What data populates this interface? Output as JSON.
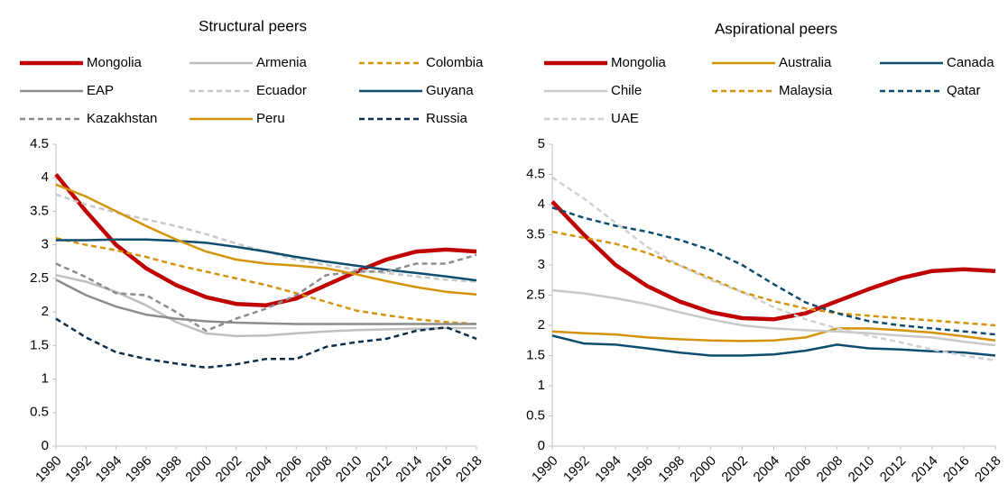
{
  "chart_data": [
    {
      "type": "line",
      "title": "Structural peers",
      "x": [
        1990,
        1992,
        1994,
        1996,
        1998,
        2000,
        2002,
        2004,
        2006,
        2008,
        2010,
        2012,
        2014,
        2016,
        2018
      ],
      "xlim": [
        1990,
        2018
      ],
      "xticks": [
        1990,
        1992,
        1994,
        1996,
        1998,
        2000,
        2002,
        2004,
        2006,
        2008,
        2010,
        2012,
        2014,
        2016,
        2018
      ],
      "ylim": [
        0,
        4.5
      ],
      "yticks": [
        0,
        0.5,
        1,
        1.5,
        2,
        2.5,
        3,
        3.5,
        4,
        4.5
      ],
      "series": [
        {
          "name": "Mongolia",
          "color": "#c00000",
          "style": "thick",
          "values": [
            4.05,
            3.5,
            3.0,
            2.65,
            2.4,
            2.22,
            2.12,
            2.1,
            2.2,
            2.4,
            2.6,
            2.78,
            2.9,
            2.93,
            2.9
          ]
        },
        {
          "name": "Armenia",
          "color": "#bfbfbf",
          "style": "solid",
          "values": [
            2.55,
            2.45,
            2.3,
            2.1,
            1.85,
            1.68,
            1.64,
            1.65,
            1.68,
            1.71,
            1.73,
            1.74,
            1.75,
            1.76,
            1.76
          ]
        },
        {
          "name": "Colombia",
          "color": "#d4940a",
          "style": "dashed",
          "values": [
            3.1,
            3.0,
            2.92,
            2.82,
            2.7,
            2.6,
            2.5,
            2.4,
            2.28,
            2.15,
            2.02,
            1.95,
            1.89,
            1.85,
            1.82
          ]
        },
        {
          "name": "EAP",
          "color": "#8c8c8c",
          "style": "solid",
          "values": [
            2.48,
            2.25,
            2.08,
            1.96,
            1.9,
            1.86,
            1.84,
            1.83,
            1.82,
            1.82,
            1.82,
            1.82,
            1.82,
            1.82,
            1.82
          ]
        },
        {
          "name": "Ecuador",
          "color": "#c8c8c8",
          "style": "dashed",
          "values": [
            3.75,
            3.6,
            3.48,
            3.38,
            3.28,
            3.16,
            3.02,
            2.9,
            2.78,
            2.7,
            2.63,
            2.58,
            2.53,
            2.48,
            2.45
          ]
        },
        {
          "name": "Guyana",
          "color": "#0e4d6e",
          "style": "solid",
          "values": [
            3.07,
            3.07,
            3.08,
            3.08,
            3.06,
            3.03,
            2.97,
            2.9,
            2.82,
            2.75,
            2.69,
            2.63,
            2.58,
            2.53,
            2.47
          ]
        },
        {
          "name": "Kazakhstan",
          "color": "#8c8c8c",
          "style": "dashed",
          "values": [
            2.72,
            2.52,
            2.28,
            2.25,
            2.0,
            1.72,
            1.9,
            2.05,
            2.25,
            2.55,
            2.6,
            2.6,
            2.72,
            2.72,
            2.85
          ]
        },
        {
          "name": "Peru",
          "color": "#d4940a",
          "style": "solid",
          "values": [
            3.9,
            3.72,
            3.5,
            3.28,
            3.08,
            2.9,
            2.78,
            2.72,
            2.69,
            2.65,
            2.56,
            2.46,
            2.37,
            2.3,
            2.26
          ]
        },
        {
          "name": "Russia",
          "color": "#0b2f4a",
          "style": "dashed",
          "values": [
            1.9,
            1.62,
            1.4,
            1.3,
            1.23,
            1.17,
            1.22,
            1.3,
            1.3,
            1.48,
            1.55,
            1.6,
            1.72,
            1.77,
            1.6
          ]
        }
      ]
    },
    {
      "type": "line",
      "title": "Aspirational peers",
      "x": [
        1990,
        1992,
        1994,
        1996,
        1998,
        2000,
        2002,
        2004,
        2006,
        2008,
        2010,
        2012,
        2014,
        2016,
        2018
      ],
      "xlim": [
        1990,
        2018
      ],
      "xticks": [
        1990,
        1992,
        1994,
        1996,
        1998,
        2000,
        2002,
        2004,
        2006,
        2008,
        2010,
        2012,
        2014,
        2016,
        2018
      ],
      "ylim": [
        0,
        5
      ],
      "yticks": [
        0,
        0.5,
        1,
        1.5,
        2,
        2.5,
        3,
        3.5,
        4,
        4.5,
        5
      ],
      "series": [
        {
          "name": "Mongolia",
          "color": "#c00000",
          "style": "thick",
          "values": [
            4.05,
            3.5,
            3.0,
            2.65,
            2.4,
            2.22,
            2.12,
            2.1,
            2.2,
            2.4,
            2.6,
            2.78,
            2.9,
            2.93,
            2.9
          ]
        },
        {
          "name": "Australia",
          "color": "#d4940a",
          "style": "solid",
          "values": [
            1.9,
            1.87,
            1.85,
            1.8,
            1.77,
            1.75,
            1.74,
            1.75,
            1.8,
            1.95,
            1.95,
            1.92,
            1.88,
            1.82,
            1.75
          ]
        },
        {
          "name": "Canada",
          "color": "#0e4d6e",
          "style": "solid",
          "values": [
            1.83,
            1.7,
            1.68,
            1.62,
            1.55,
            1.5,
            1.5,
            1.52,
            1.58,
            1.68,
            1.62,
            1.6,
            1.57,
            1.55,
            1.5
          ]
        },
        {
          "name": "Chile",
          "color": "#c8c8c8",
          "style": "solid",
          "values": [
            2.58,
            2.53,
            2.45,
            2.35,
            2.22,
            2.1,
            2.0,
            1.95,
            1.92,
            1.9,
            1.87,
            1.83,
            1.8,
            1.73,
            1.67
          ]
        },
        {
          "name": "Malaysia",
          "color": "#d4940a",
          "style": "dashed",
          "values": [
            3.55,
            3.45,
            3.35,
            3.2,
            3.0,
            2.78,
            2.55,
            2.4,
            2.28,
            2.2,
            2.16,
            2.12,
            2.08,
            2.04,
            2.0
          ]
        },
        {
          "name": "Qatar",
          "color": "#0e4d6e",
          "style": "dashed",
          "values": [
            3.95,
            3.78,
            3.65,
            3.55,
            3.42,
            3.25,
            3.0,
            2.68,
            2.38,
            2.2,
            2.07,
            2.0,
            1.95,
            1.9,
            1.85
          ]
        },
        {
          "name": "UAE",
          "color": "#d0d0d0",
          "style": "dashed",
          "values": [
            4.45,
            4.1,
            3.7,
            3.3,
            3.0,
            2.75,
            2.55,
            2.3,
            2.1,
            1.95,
            1.83,
            1.72,
            1.6,
            1.5,
            1.42
          ]
        }
      ]
    }
  ]
}
